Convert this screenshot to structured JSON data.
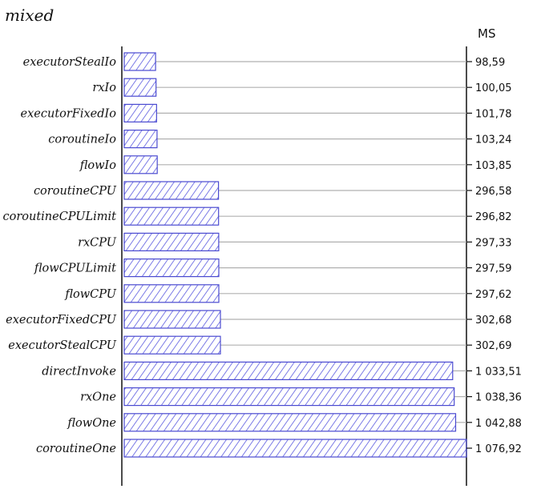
{
  "chart_data": {
    "type": "bar",
    "orientation": "horizontal",
    "title": "mixed",
    "unit_label": "MS",
    "categories": [
      "executorStealIo",
      "rxIo",
      "executorFixedIo",
      "coroutineIo",
      "flowIo",
      "coroutineCPU",
      "coroutineCPULimit",
      "rxCPU",
      "flowCPULimit",
      "flowCPU",
      "executorFixedCPU",
      "executorStealCPU",
      "directInvoke",
      "rxOne",
      "flowOne",
      "coroutineOne"
    ],
    "values": [
      98.59,
      100.05,
      101.78,
      103.24,
      103.85,
      296.58,
      296.82,
      297.33,
      297.59,
      297.62,
      302.68,
      302.69,
      1033.51,
      1038.36,
      1042.88,
      1076.92
    ],
    "value_labels": [
      "98,59",
      "100,05",
      "101,78",
      "103,24",
      "103,85",
      "296,58",
      "296,82",
      "297,33",
      "297,59",
      "297,62",
      "302,68",
      "302,69",
      "1 033,51",
      "1 038,36",
      "1 042,88",
      "1 076,92"
    ],
    "xlim": [
      0,
      1076.92
    ],
    "legend": "none",
    "grid": false,
    "colors": {
      "bar_fill": "#7b7be8",
      "bar_stroke": "#4a4ad0",
      "leader": "#b0b0b0",
      "axis": "#111111",
      "text": "#111111"
    }
  }
}
